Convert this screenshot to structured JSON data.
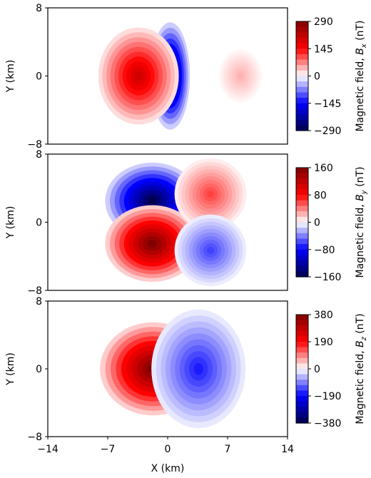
{
  "chart_data": [
    {
      "type": "heatmap",
      "component": "x",
      "ylabel": "Y (km)",
      "ylim": [
        -8,
        8
      ],
      "xlim": [
        -14,
        14
      ],
      "yticks": [
        "8",
        "0",
        "−8"
      ],
      "xticks": [],
      "colorbar": {
        "label": "Magnetic field, ",
        "symbol": "B",
        "subscript": "x",
        "unit": " (nT)",
        "range": [
          -290,
          290
        ],
        "ticks": [
          "290",
          "145",
          "0",
          "−145",
          "−290"
        ]
      },
      "lobes": [
        {
          "x": 0.3,
          "y": 0,
          "rx": 2.3,
          "ry": 6.3,
          "value": -290
        },
        {
          "x": -3.4,
          "y": 0,
          "rx": 4.7,
          "ry": 5.7,
          "value": 200
        },
        {
          "x": 8.5,
          "y": 0,
          "rx": 2.5,
          "ry": 3.1,
          "value": 45
        }
      ]
    },
    {
      "type": "heatmap",
      "component": "y",
      "ylabel": "Y (km)",
      "ylim": [
        -8,
        8
      ],
      "xlim": [
        -14,
        14
      ],
      "yticks": [
        "8",
        "0",
        "−8"
      ],
      "xticks": [],
      "colorbar": {
        "label": "Magnetic field, ",
        "symbol": "B",
        "subscript": "y",
        "unit": " (nT)",
        "range": [
          -160,
          160
        ],
        "ticks": [
          "160",
          "80",
          "0",
          "−80",
          "−160"
        ]
      },
      "lobes": [
        {
          "x": -1.8,
          "y": 2.5,
          "rx": 5.5,
          "ry": 4.5,
          "value": -160
        },
        {
          "x": -1.8,
          "y": -2.5,
          "rx": 5.5,
          "ry": 4.5,
          "value": 160
        },
        {
          "x": 5.0,
          "y": 3.3,
          "rx": 4.2,
          "ry": 4.2,
          "value": 60
        },
        {
          "x": 5.0,
          "y": -3.3,
          "rx": 4.2,
          "ry": 4.2,
          "value": -60
        }
      ]
    },
    {
      "type": "heatmap",
      "component": "z",
      "ylabel": "Y (km)",
      "xlabel": "X (km)",
      "ylim": [
        -8,
        8
      ],
      "xlim": [
        -14,
        14
      ],
      "yticks": [
        "8",
        "0",
        "−8"
      ],
      "xticks": [
        "−14",
        "−7",
        "0",
        "7",
        "14"
      ],
      "colorbar": {
        "label": "Magnetic field, ",
        "symbol": "B",
        "subscript": "z",
        "unit": " (nT)",
        "range": [
          -380,
          380
        ],
        "ticks": [
          "380",
          "190",
          "0",
          "−190",
          "−380"
        ]
      },
      "lobes": [
        {
          "x": -1.7,
          "y": 0,
          "rx": 6.2,
          "ry": 5.5,
          "value": 380
        },
        {
          "x": 3.6,
          "y": 0,
          "rx": 5.5,
          "ry": 7.0,
          "value": -170
        }
      ]
    }
  ]
}
